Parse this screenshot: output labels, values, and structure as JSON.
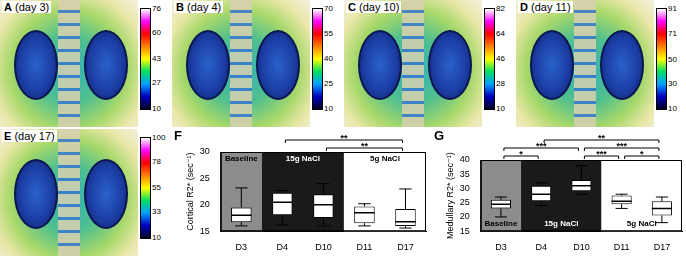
{
  "images": [
    {
      "panel": "A",
      "label": "(day 3)",
      "colorbar": {
        "range": [
          10,
          76
        ],
        "ticks": [
          76,
          60,
          43,
          27,
          10
        ]
      }
    },
    {
      "panel": "B",
      "label": "(day 4)",
      "colorbar": {
        "range": [
          10,
          70
        ],
        "ticks": [
          70,
          55,
          40,
          25,
          10
        ]
      }
    },
    {
      "panel": "C",
      "label": "(day 10)",
      "colorbar": {
        "range": [
          10,
          82
        ],
        "ticks": [
          82,
          64,
          46,
          28,
          10
        ]
      }
    },
    {
      "panel": "D",
      "label": "(day 11)",
      "colorbar": {
        "range": [
          10,
          91
        ],
        "ticks": [
          91,
          71,
          50,
          30,
          10
        ]
      }
    },
    {
      "panel": "E",
      "label": "(day 17)",
      "colorbar": {
        "range": [
          10,
          100
        ],
        "ticks": [
          100,
          78,
          55,
          33,
          10
        ]
      }
    }
  ],
  "chart_data": [
    {
      "type": "box",
      "panel": "F",
      "y_label": "Cortical R2* (sec⁻¹)",
      "categories": [
        "D3",
        "D4",
        "D10",
        "D11",
        "D17"
      ],
      "values": [
        {
          "min": 16,
          "q1": 16.7,
          "median": 18,
          "q3": 19.5,
          "max": 23.2
        },
        {
          "min": 16.2,
          "q1": 18,
          "median": 20.5,
          "q3": 22.3,
          "max": 22.7
        },
        {
          "min": 16,
          "q1": 17.5,
          "median": 20,
          "q3": 22,
          "max": 24
        },
        {
          "min": 16,
          "q1": 16.5,
          "median": 18.5,
          "q3": 19.7,
          "max": 20.2
        },
        {
          "min": 15.6,
          "q1": 16,
          "median": 16.8,
          "q3": 19.2,
          "max": 23
        }
      ],
      "color": "#ffffff",
      "ylim": [
        15,
        30
      ],
      "yticks": [
        15,
        20,
        25,
        30
      ],
      "grid": false,
      "phases": [
        {
          "label": "Baseline",
          "from": "D3",
          "to": "D3",
          "color": "#8c8c8c"
        },
        {
          "label": "15g NaCl",
          "from": "D4",
          "to": "D10",
          "color": "#1a1a1a"
        },
        {
          "label": "5g NaCl",
          "from": "D11",
          "to": "D17",
          "color": "#ffffff"
        }
      ],
      "significance": [
        {
          "from": "D4",
          "to": "D17",
          "label": "**"
        },
        {
          "from": "D10",
          "to": "D17",
          "label": "**"
        }
      ]
    },
    {
      "type": "box",
      "panel": "G",
      "y_label": "Medullary R2* (sec⁻¹)",
      "categories": [
        "D3",
        "D4",
        "D10",
        "D11",
        "D17"
      ],
      "values": [
        {
          "min": 20,
          "q1": 23,
          "median": 24.5,
          "q3": 26,
          "max": 27
        },
        {
          "min": 24,
          "q1": 25.5,
          "median": 28,
          "q3": 31,
          "max": 32
        },
        {
          "min": 28,
          "q1": 29,
          "median": 31,
          "q3": 33,
          "max": 38
        },
        {
          "min": 23,
          "q1": 24.5,
          "median": 25.5,
          "q3": 27.5,
          "max": 28
        },
        {
          "min": 18,
          "q1": 20.5,
          "median": 23,
          "q3": 25.5,
          "max": 27
        }
      ],
      "color": "#ffffff",
      "ylim": [
        15,
        40
      ],
      "yticks": [
        15,
        20,
        25,
        30,
        35,
        40
      ],
      "grid": false,
      "phases": [
        {
          "label": "Baseline",
          "from": "D3",
          "to": "D3",
          "color": "#8c8c8c"
        },
        {
          "label": "15g NaCl",
          "from": "D4",
          "to": "D10",
          "color": "#1a1a1a"
        },
        {
          "label": "5g NaCl",
          "from": "D11",
          "to": "D17",
          "color": "#ffffff"
        }
      ],
      "significance": [
        {
          "from": "D3",
          "to": "D4",
          "label": "*"
        },
        {
          "from": "D3",
          "to": "D10",
          "label": "***"
        },
        {
          "from": "D4",
          "to": "D17",
          "label": "**"
        },
        {
          "from": "D10",
          "to": "D11",
          "label": "***"
        },
        {
          "from": "D10",
          "to": "D17",
          "label": "***"
        },
        {
          "from": "D11",
          "to": "D17",
          "label": "*"
        }
      ]
    }
  ]
}
